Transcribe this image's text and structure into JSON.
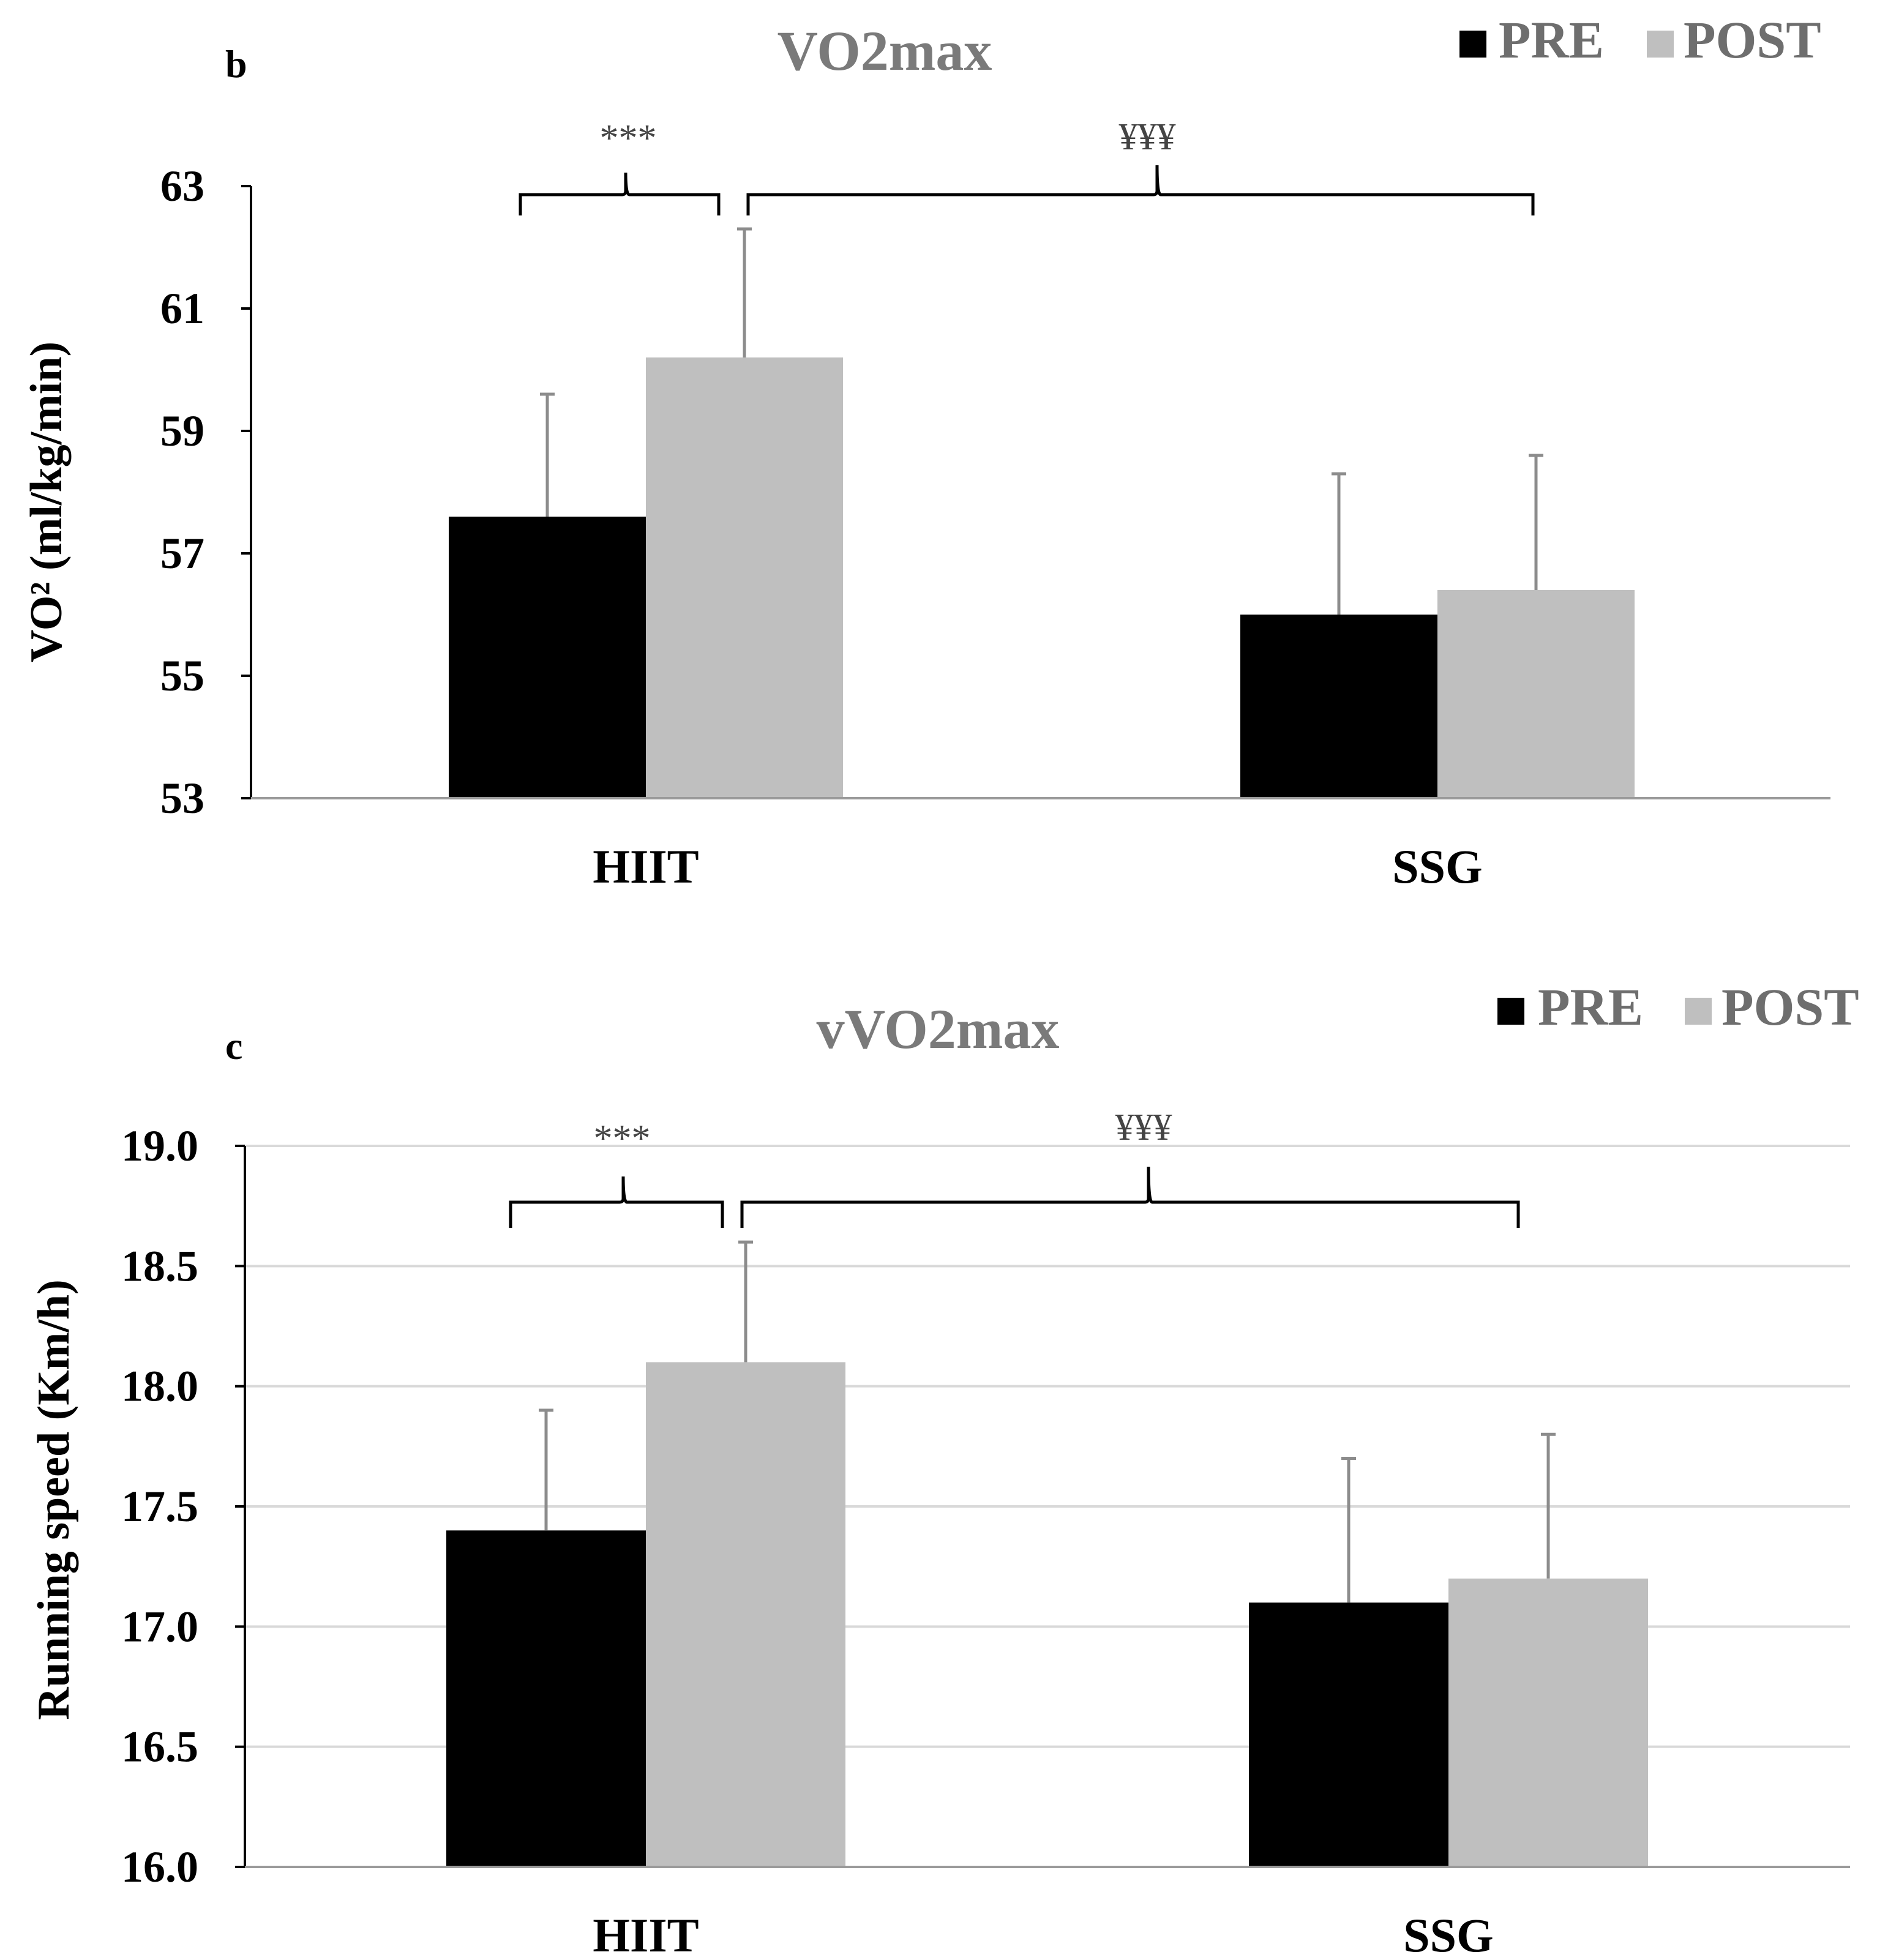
{
  "colors": {
    "pre": "#000000",
    "post": "#bfbfbf",
    "error_bar": "#8c8c8c",
    "grid": "#d9d9d9",
    "axis": "#9a9a9a",
    "title": "#7a7a7a",
    "bracket": "#000000"
  },
  "chart_data": [
    {
      "panel_letter": "b",
      "type": "bar",
      "title": "VO2max",
      "xlabel": "",
      "ylabel": "VO² (ml/kg/min)",
      "categories": [
        "HIIT",
        "SSG"
      ],
      "ylim": [
        53,
        63
      ],
      "yticks": [
        "53",
        "55",
        "57",
        "59",
        "61",
        "63"
      ],
      "grid": false,
      "legend_placement": "top-right",
      "series": [
        {
          "name": "PRE",
          "values": [
            57.6,
            56.0
          ],
          "errors": [
            2.0,
            2.3
          ]
        },
        {
          "name": "POST",
          "values": [
            60.2,
            56.4
          ],
          "errors": [
            2.1,
            2.2
          ]
        }
      ],
      "annotations": [
        {
          "text": "***",
          "between": [
            "HIIT PRE",
            "HIIT POST"
          ]
        },
        {
          "text": "¥¥¥",
          "between": [
            "HIIT POST",
            "SSG POST"
          ]
        }
      ]
    },
    {
      "panel_letter": "c",
      "type": "bar",
      "title": "vVO2max",
      "xlabel": "",
      "ylabel": "Running speed (Km/h)",
      "categories": [
        "HIIT",
        "SSG"
      ],
      "ylim": [
        16.0,
        19.0
      ],
      "yticks": [
        "16.0",
        "16.5",
        "17.0",
        "17.5",
        "18.0",
        "18.5",
        "19.0"
      ],
      "grid": true,
      "legend_placement": "top-right",
      "series": [
        {
          "name": "PRE",
          "values": [
            17.4,
            17.1
          ],
          "errors": [
            0.5,
            0.6
          ]
        },
        {
          "name": "POST",
          "values": [
            18.1,
            17.2
          ],
          "errors": [
            0.5,
            0.6
          ]
        }
      ],
      "annotations": [
        {
          "text": "***",
          "between": [
            "HIIT PRE",
            "HIIT POST"
          ]
        },
        {
          "text": "¥¥¥",
          "between": [
            "HIIT POST",
            "SSG POST"
          ]
        }
      ]
    }
  ]
}
